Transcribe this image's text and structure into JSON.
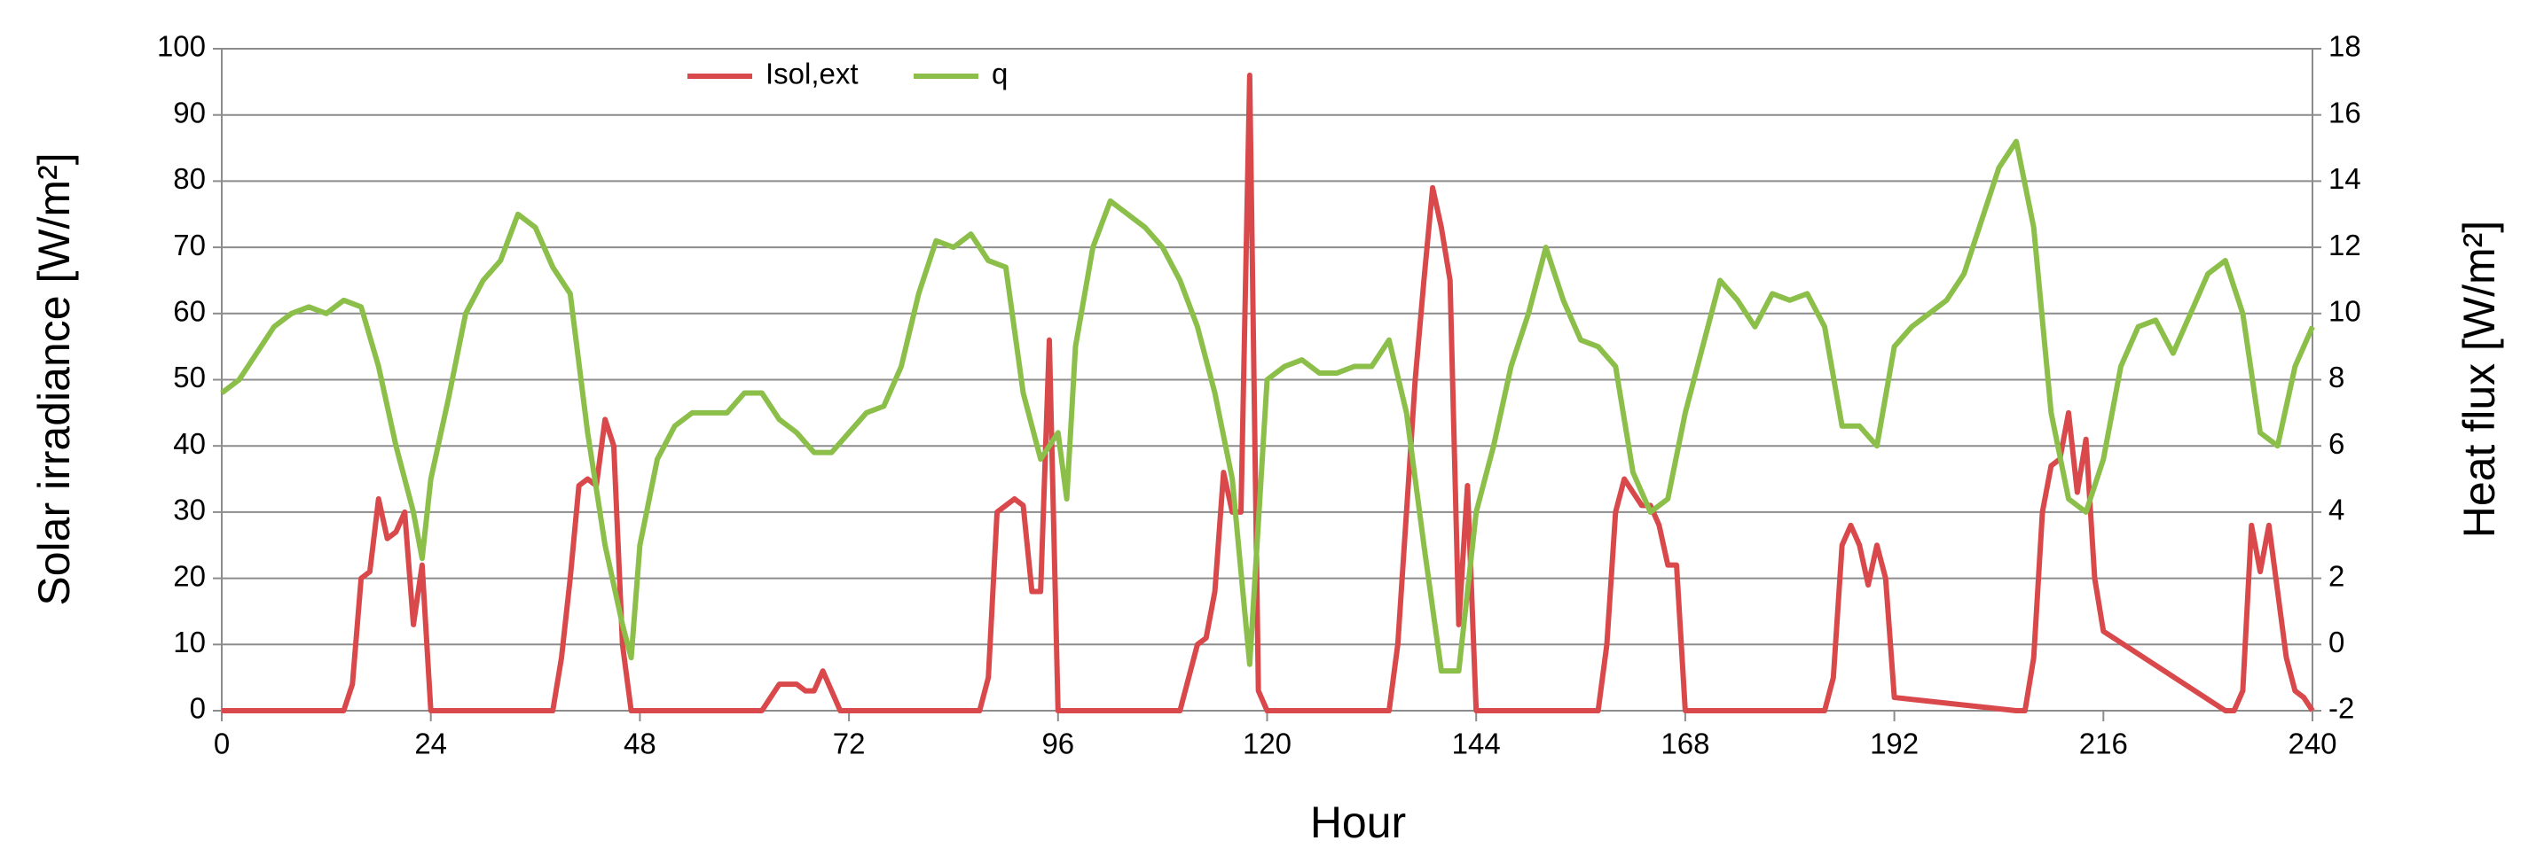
{
  "chart_data": {
    "type": "line",
    "xlabel": "Hour",
    "ylabel": "Solar irradiance [W/m²]",
    "y2label": "Heat flux [W/m²]",
    "xlim": [
      0,
      240
    ],
    "xticks": [
      0,
      24,
      48,
      72,
      96,
      120,
      144,
      168,
      192,
      216,
      240
    ],
    "ylim": [
      0,
      100
    ],
    "yticks": [
      0,
      10,
      20,
      30,
      40,
      50,
      60,
      70,
      80,
      90,
      100
    ],
    "y2lim": [
      -2,
      18
    ],
    "y2ticks": [
      -2,
      0,
      2,
      4,
      6,
      8,
      10,
      12,
      14,
      16,
      18
    ],
    "grid": true,
    "legend": "top",
    "series": [
      {
        "name": "Isol,ext",
        "color": "#d9484a",
        "x": [
          0,
          14,
          15,
          16,
          17,
          18,
          19,
          20,
          21,
          22,
          23,
          24,
          38,
          39,
          40,
          41,
          42,
          43,
          44,
          45,
          46,
          47,
          62,
          63,
          64,
          65,
          66,
          67,
          68,
          69,
          70,
          71,
          87,
          88,
          89,
          90,
          91,
          92,
          93,
          94,
          95,
          96,
          110,
          111,
          112,
          113,
          114,
          115,
          116,
          117,
          118,
          119,
          120,
          134,
          135,
          136,
          137,
          138,
          139,
          140,
          141,
          142,
          143,
          144,
          158,
          159,
          160,
          161,
          162,
          163,
          164,
          165,
          166,
          167,
          168,
          184,
          185,
          186,
          187,
          188,
          189,
          190,
          191,
          192,
          206,
          207,
          208,
          209,
          210,
          211,
          212,
          213,
          214,
          215,
          216,
          230,
          231,
          232,
          233,
          234,
          235,
          236,
          237,
          238,
          239,
          240
        ],
        "values": [
          0,
          0,
          4,
          20,
          21,
          32,
          26,
          27,
          30,
          13,
          22,
          0,
          0,
          8,
          20,
          34,
          35,
          34,
          44,
          40,
          10,
          0,
          0,
          2,
          4,
          4,
          4,
          3,
          3,
          6,
          3,
          0,
          0,
          5,
          30,
          31,
          32,
          31,
          18,
          18,
          56,
          0,
          0,
          5,
          10,
          11,
          18,
          36,
          30,
          30,
          96,
          3,
          0,
          0,
          10,
          30,
          50,
          65,
          79,
          73,
          65,
          13,
          34,
          0,
          0,
          10,
          30,
          35,
          33,
          31,
          31,
          28,
          22,
          22,
          0,
          0,
          5,
          25,
          28,
          25,
          19,
          25,
          20,
          2,
          0,
          0,
          8,
          30,
          37,
          38,
          45,
          33,
          41,
          20,
          12,
          0,
          0,
          3,
          28,
          21,
          28,
          18,
          8,
          3,
          2,
          0
        ]
      },
      {
        "name": "q",
        "color": "#8cbf4a",
        "axis": "y2",
        "x": [
          0,
          2,
          4,
          6,
          8,
          10,
          12,
          14,
          16,
          18,
          20,
          22,
          23,
          24,
          26,
          28,
          30,
          32,
          34,
          36,
          38,
          40,
          42,
          44,
          46,
          47,
          48,
          50,
          52,
          54,
          56,
          58,
          60,
          62,
          64,
          66,
          68,
          70,
          72,
          74,
          76,
          78,
          80,
          82,
          84,
          86,
          88,
          90,
          92,
          94,
          96,
          97,
          98,
          100,
          102,
          104,
          106,
          108,
          110,
          112,
          114,
          116,
          118,
          120,
          122,
          124,
          126,
          128,
          130,
          132,
          134,
          136,
          138,
          140,
          142,
          144,
          146,
          148,
          150,
          152,
          154,
          156,
          158,
          160,
          162,
          164,
          166,
          168,
          170,
          172,
          174,
          176,
          178,
          180,
          182,
          184,
          186,
          188,
          190,
          192,
          194,
          196,
          198,
          200,
          202,
          204,
          206,
          208,
          210,
          212,
          214,
          216,
          218,
          220,
          222,
          224,
          226,
          228,
          230,
          232,
          234,
          236,
          238,
          240
        ],
        "values": [
          7.6,
          8,
          8.8,
          9.6,
          10,
          10.2,
          10,
          10.4,
          10.2,
          8.4,
          6,
          4,
          2.6,
          5,
          7.4,
          10,
          11,
          11.6,
          13,
          12.6,
          11.4,
          10.6,
          6.4,
          3,
          0.6,
          -0.4,
          3,
          5.6,
          6.6,
          7,
          7,
          7,
          7.6,
          7.6,
          6.8,
          6.4,
          5.8,
          5.8,
          6.4,
          7,
          7.2,
          8.4,
          10.6,
          12.2,
          12,
          12.4,
          11.6,
          11.4,
          7.6,
          5.6,
          6.4,
          4.4,
          9,
          12,
          13.4,
          13,
          12.6,
          12,
          11,
          9.6,
          7.6,
          5,
          -0.6,
          8,
          8.4,
          8.6,
          8.2,
          8.2,
          8.4,
          8.4,
          9.2,
          7,
          3,
          -0.8,
          -0.8,
          4,
          6,
          8.4,
          10,
          12,
          10.4,
          9.2,
          9,
          8.4,
          5.2,
          4,
          4.4,
          7,
          9,
          11,
          10.4,
          9.6,
          10.6,
          10.4,
          10.6,
          9.6,
          6.6,
          6.6,
          6,
          9,
          9.6,
          10,
          10.4,
          11.2,
          12.8,
          14.4,
          15.2,
          12.6,
          7,
          4.4,
          4,
          5.6,
          8.4,
          9.6,
          9.8,
          8.8,
          10,
          11.2,
          11.6,
          10,
          6.4,
          6,
          8.4,
          9.6
        ]
      }
    ]
  }
}
